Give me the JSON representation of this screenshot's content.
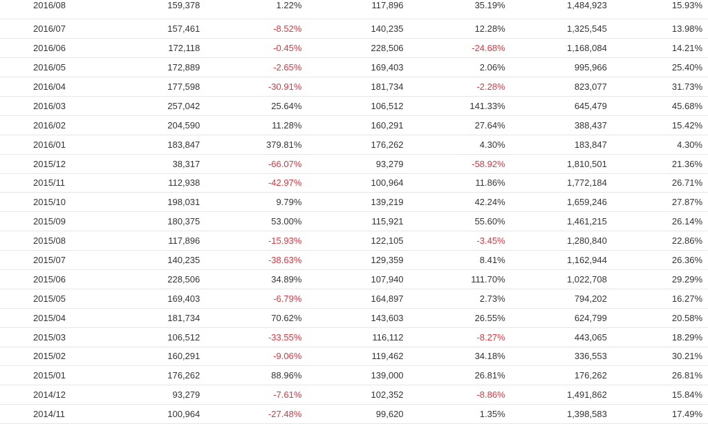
{
  "table": {
    "rows": [
      [
        "2016/08",
        "159,378",
        "1.22%",
        "117,896",
        "35.19%",
        "1,484,923",
        "15.93%"
      ],
      [
        "2016/07",
        "157,461",
        "-8.52%",
        "140,235",
        "12.28%",
        "1,325,545",
        "13.98%"
      ],
      [
        "2016/06",
        "172,118",
        "-0.45%",
        "228,506",
        "-24.68%",
        "1,168,084",
        "14.21%"
      ],
      [
        "2016/05",
        "172,889",
        "-2.65%",
        "169,403",
        "2.06%",
        "995,966",
        "25.40%"
      ],
      [
        "2016/04",
        "177,598",
        "-30.91%",
        "181,734",
        "-2.28%",
        "823,077",
        "31.73%"
      ],
      [
        "2016/03",
        "257,042",
        "25.64%",
        "106,512",
        "141.33%",
        "645,479",
        "45.68%"
      ],
      [
        "2016/02",
        "204,590",
        "11.28%",
        "160,291",
        "27.64%",
        "388,437",
        "15.42%"
      ],
      [
        "2016/01",
        "183,847",
        "379.81%",
        "176,262",
        "4.30%",
        "183,847",
        "4.30%"
      ],
      [
        "2015/12",
        "38,317",
        "-66.07%",
        "93,279",
        "-58.92%",
        "1,810,501",
        "21.36%"
      ],
      [
        "2015/11",
        "112,938",
        "-42.97%",
        "100,964",
        "11.86%",
        "1,772,184",
        "26.71%"
      ],
      [
        "2015/10",
        "198,031",
        "9.79%",
        "139,219",
        "42.24%",
        "1,659,246",
        "27.87%"
      ],
      [
        "2015/09",
        "180,375",
        "53.00%",
        "115,921",
        "55.60%",
        "1,461,215",
        "26.14%"
      ],
      [
        "2015/08",
        "117,896",
        "-15.93%",
        "122,105",
        "-3.45%",
        "1,280,840",
        "22.86%"
      ],
      [
        "2015/07",
        "140,235",
        "-38.63%",
        "129,359",
        "8.41%",
        "1,162,944",
        "26.36%"
      ],
      [
        "2015/06",
        "228,506",
        "34.89%",
        "107,940",
        "111.70%",
        "1,022,708",
        "29.29%"
      ],
      [
        "2015/05",
        "169,403",
        "-6.79%",
        "164,897",
        "2.73%",
        "794,202",
        "16.27%"
      ],
      [
        "2015/04",
        "181,734",
        "70.62%",
        "143,603",
        "26.55%",
        "624,799",
        "20.58%"
      ],
      [
        "2015/03",
        "106,512",
        "-33.55%",
        "116,112",
        "-8.27%",
        "443,065",
        "18.29%"
      ],
      [
        "2015/02",
        "160,291",
        "-9.06%",
        "119,462",
        "34.18%",
        "336,553",
        "30.21%"
      ],
      [
        "2015/01",
        "176,262",
        "88.96%",
        "139,000",
        "26.81%",
        "176,262",
        "26.81%"
      ],
      [
        "2014/12",
        "93,279",
        "-7.61%",
        "102,352",
        "-8.86%",
        "1,491,862",
        "15.84%"
      ],
      [
        "2014/11",
        "100,964",
        "-27.48%",
        "99,620",
        "1.35%",
        "1,398,583",
        "17.49%"
      ]
    ],
    "negative_color": "#e8333d",
    "text_color": "#333333",
    "row_border_color": "#e6e6e6"
  }
}
